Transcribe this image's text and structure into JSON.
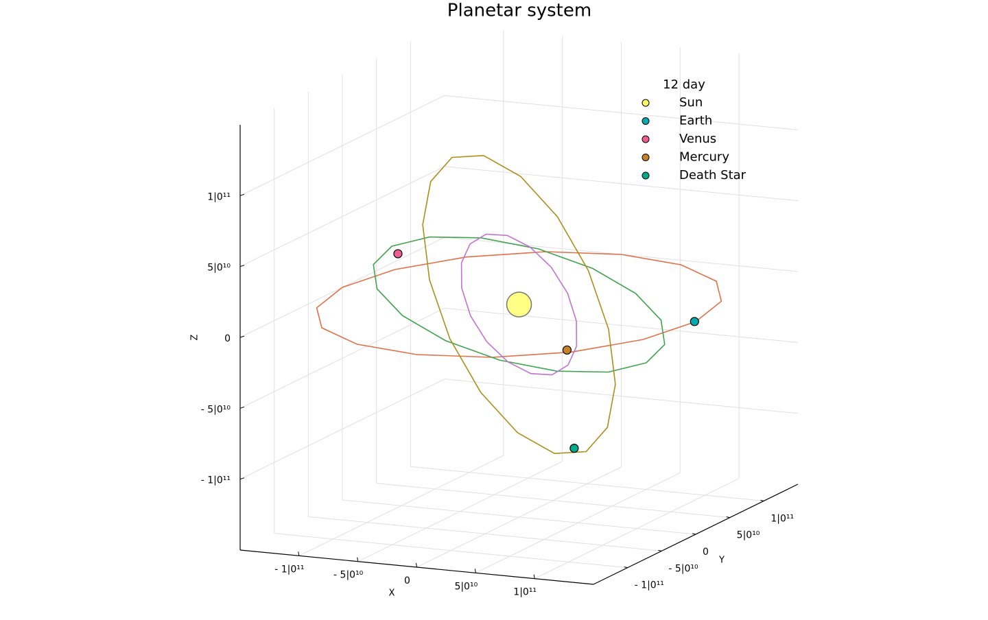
{
  "chart_data": {
    "type": "scatter3d",
    "title": "Planetar system",
    "xlabel": "X",
    "ylabel": "Y",
    "zlabel": "Z",
    "xlim": [
      -150000000000.0,
      150000000000.0
    ],
    "ylim": [
      -150000000000.0,
      150000000000.0
    ],
    "zlim": [
      -150000000000.0,
      150000000000.0
    ],
    "xticks": [
      {
        "value": -100000000000.0,
        "label": "- 1|0¹¹"
      },
      {
        "value": -50000000000.0,
        "label": "- 5|0¹⁰"
      },
      0,
      {
        "value": 50000000000.0,
        "label": "5|0¹⁰"
      },
      {
        "value": 100000000000.0,
        "label": "1|0¹¹"
      }
    ],
    "yticks": [
      {
        "value": -100000000000.0,
        "label": "- 1|0¹¹"
      },
      {
        "value": -50000000000.0,
        "label": "- 5|0¹⁰"
      },
      0,
      {
        "value": 50000000000.0,
        "label": "5|0¹⁰"
      },
      {
        "value": 100000000000.0,
        "label": "1|0¹¹"
      }
    ],
    "zticks": [
      {
        "value": -100000000000.0,
        "label": "- 1|0¹¹"
      },
      {
        "value": -50000000000.0,
        "label": "- 5|0¹⁰"
      },
      0,
      {
        "value": 50000000000.0,
        "label": "5|0¹⁰"
      },
      {
        "value": 100000000000.0,
        "label": "1|0¹¹"
      }
    ],
    "grid": true,
    "legend_title": "12 day",
    "legend_position": "top-right",
    "series": [
      {
        "name": "Sun",
        "color": "#ffff66",
        "x": 0,
        "y": 0,
        "z": 0
      },
      {
        "name": "Earth",
        "color": "#00aaae",
        "x": 149000000000.0,
        "y": 0,
        "z": 0,
        "orbit": {
          "color": "#e36f47",
          "x": [
            150000000000.0,
            138600000000.0,
            106100000000.0,
            57400000000.0,
            0,
            -57400000000.0,
            -106100000000.0,
            -138600000000.0,
            -150000000000.0,
            -138600000000.0,
            -106100000000.0,
            -57400000000.0,
            0,
            57400000000.0,
            106100000000.0,
            138600000000.0,
            150000000000.0
          ],
          "y": [
            0,
            57400000000.0,
            106100000000.0,
            138600000000.0,
            150000000000.0,
            138600000000.0,
            106100000000.0,
            57400000000.0,
            0,
            -57400000000.0,
            -106100000000.0,
            -138600000000.0,
            -150000000000.0,
            -138600000000.0,
            -106100000000.0,
            -57400000000.0,
            0
          ],
          "z": [
            0,
            0,
            0,
            0,
            0,
            0,
            0,
            0,
            0,
            0,
            0,
            0,
            0,
            0,
            0,
            0,
            0
          ]
        }
      },
      {
        "name": "Venus",
        "color": "#ed5e93",
        "x": -98600000000.0,
        "y": -7300000000.0,
        "z": 29600000000.0,
        "orbit": {
          "color": "#3ea44e",
          "x": [
            108000000000.0,
            99800000000.0,
            76400000000.0,
            41300000000.0,
            0,
            -41300000000.0,
            -76400000000.0,
            -99800000000.0,
            -108000000000.0,
            -99800000000.0,
            -76400000000.0,
            -41300000000.0,
            0,
            41300000000.0,
            76400000000.0,
            99800000000.0,
            108000000000.0
          ],
          "y": [
            0,
            41300000000.0,
            76400000000.0,
            99800000000.0,
            108000000000.0,
            99800000000.0,
            76400000000.0,
            41300000000.0,
            0,
            -41300000000.0,
            -76400000000.0,
            -99800000000.0,
            -108000000000.0,
            -99800000000.0,
            -76400000000.0,
            -41300000000.0,
            0
          ],
          "z": [
            -32400000000.0,
            -29900000000.0,
            -22900000000.0,
            -12400000000.0,
            0,
            12400000000.0,
            22900000000.0,
            29900000000.0,
            32400000000.0,
            29900000000.0,
            22900000000.0,
            12400000000.0,
            0,
            -12400000000.0,
            -22900000000.0,
            -29900000000.0,
            -32400000000.0
          ]
        }
      },
      {
        "name": "Mercury",
        "color": "#c68225",
        "x": 28000000000.0,
        "y": 22000000000.0,
        "z": -35000000000.0,
        "orbit": {
          "color": "#c371d2",
          "x": [
            30000000000.0,
            31500000000.0,
            28300000000.0,
            20700000000.0,
            10000000000.0,
            -2300000000.0,
            -14100000000.0,
            -23900000000.0,
            -30000000000.0,
            -31500000000.0,
            -28300000000.0,
            -20700000000.0,
            -10000000000.0,
            2300000000.0,
            14100000000.0,
            23900000000.0,
            30000000000.0
          ],
          "y": [
            20000000000.0,
            30000000000.0,
            35300000000.0,
            35400000000.0,
            30000000000.0,
            20000000000.0,
            7100000000.0,
            -7000000000.0,
            -20000000000.0,
            -30000000000.0,
            -35300000000.0,
            -35400000000.0,
            -30000000000.0,
            -20000000000.0,
            -7100000000.0,
            7000000000.0,
            20000000000.0
          ],
          "z": [
            -45000000000.0,
            -33900000000.0,
            -17700000000.0,
            1300000000.0,
            20000000000.0,
            35700000000.0,
            45900000000.0,
            49300000000.0,
            45000000000.0,
            33900000000.0,
            17700000000.0,
            -1300000000.0,
            -20000000000.0,
            -35700000000.0,
            -45900000000.0,
            -49300000000.0,
            -45000000000.0
          ]
        }
      },
      {
        "name": "Death Star",
        "color": "#00a98d",
        "x": 26400000000.0,
        "y": 35300000000.0,
        "z": -107600000000.0,
        "orbit": {
          "color": "#ac8e18",
          "x": [
            -15000000000.0,
            5300000000.0,
            24800000000.0,
            40500000000.0,
            50000000000.0,
            51900000000.0,
            46000000000.0,
            33100000000.0,
            15000000000.0,
            -5300000000.0,
            -24800000000.0,
            -40500000000.0,
            -50000000000.0,
            -51900000000.0,
            -46000000000.0,
            -33100000000.0,
            -15000000000.0
          ],
          "y": [
            -26000000000.0,
            -6800000000.0,
            13400000000.0,
            31600000000.0,
            45000000000.0,
            51600000000.0,
            50200000000.0,
            41200000000.0,
            26000000000.0,
            6800000000.0,
            -13400000000.0,
            -31600000000.0,
            -45000000000.0,
            -51600000000.0,
            -50200000000.0,
            -41200000000.0,
            -26000000000.0
          ],
          "z": [
            110000000000.0,
            92400000000.0,
            60800000000.0,
            19900000000.0,
            -24000000000.0,
            -64300000000.0,
            -94800000000.0,
            -110800000000.0,
            -110000000000.0,
            -92400000000.0,
            -60800000000.0,
            -19900000000.0,
            24000000000.0,
            64300000000.0,
            94800000000.0,
            110800000000.0,
            110000000000.0
          ]
        }
      }
    ]
  }
}
